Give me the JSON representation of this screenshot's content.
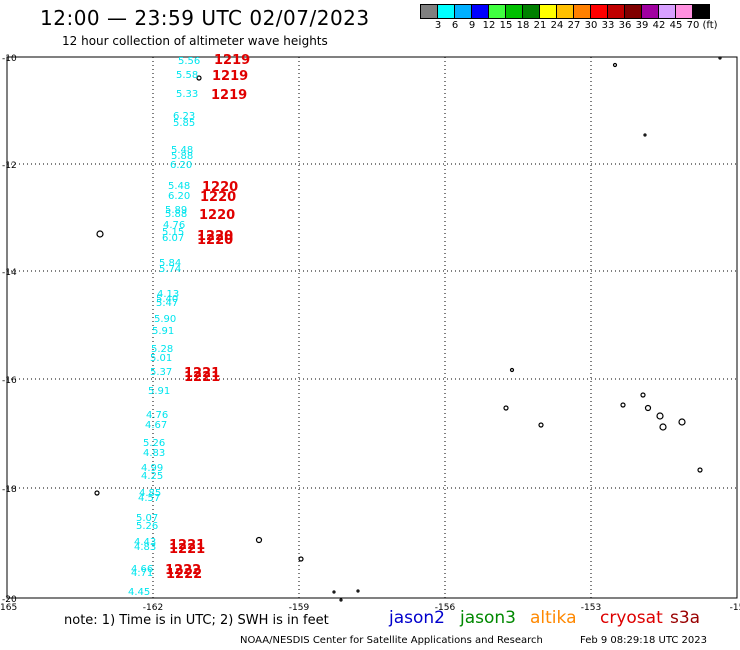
{
  "title": "12:00 — 23:59 UTC 02/07/2023",
  "subtitle": "12 hour collection of altimeter wave heights",
  "colorbar": {
    "colors": [
      "#808080",
      "#00ffff",
      "#00b0ff",
      "#0000ff",
      "#40ff40",
      "#00c000",
      "#008000",
      "#ffff00",
      "#ffc000",
      "#ff8000",
      "#ff0000",
      "#c00000",
      "#800000",
      "#a000a0",
      "#d8a0ff",
      "#ff90e0",
      "#000000"
    ],
    "ticks": [
      "3",
      "6",
      "9",
      "12",
      "15",
      "18",
      "21",
      "24",
      "27",
      "30",
      "33",
      "36",
      "39",
      "42",
      "45",
      "70",
      "(ft)"
    ]
  },
  "axes": {
    "lat_labels": [
      "-10",
      "-12",
      "-14",
      "-16",
      "-18",
      "-20"
    ],
    "lon_labels": [
      "-165",
      "-162",
      "-159",
      "-156",
      "-153",
      "-15"
    ]
  },
  "observations": [
    {
      "v": "5.56",
      "c": "#00e5ee"
    },
    {
      "v": "5.58",
      "c": "#00e5ee"
    },
    {
      "v": "5.33",
      "c": "#00e5ee"
    },
    {
      "v": "6.23",
      "c": "#00e5ee"
    },
    {
      "v": "5.85",
      "c": "#00e5ee"
    },
    {
      "v": "5.48",
      "c": "#00e5ee"
    },
    {
      "v": "5.88",
      "c": "#00e5ee"
    },
    {
      "v": "6.20",
      "c": "#00e5ee"
    },
    {
      "v": "5.48",
      "c": "#00e5ee"
    },
    {
      "v": "6.20",
      "c": "#00e5ee"
    },
    {
      "v": "5.89",
      "c": "#00e5ee"
    },
    {
      "v": "5.88",
      "c": "#00e5ee"
    },
    {
      "v": "4.76",
      "c": "#00e5ee"
    },
    {
      "v": "5.15",
      "c": "#00e5ee"
    },
    {
      "v": "6.07",
      "c": "#00e5ee"
    },
    {
      "v": "5.84",
      "c": "#00e5ee"
    },
    {
      "v": "5.74",
      "c": "#00e5ee"
    },
    {
      "v": "4.13",
      "c": "#00e5ee"
    },
    {
      "v": "5.40",
      "c": "#00e5ee"
    },
    {
      "v": "5.47",
      "c": "#00e5ee"
    },
    {
      "v": "5.90",
      "c": "#00e5ee"
    },
    {
      "v": "5.91",
      "c": "#00e5ee"
    },
    {
      "v": "5.28",
      "c": "#00e5ee"
    },
    {
      "v": "5.01",
      "c": "#00e5ee"
    },
    {
      "v": "5.37",
      "c": "#00e5ee"
    },
    {
      "v": "5.91",
      "c": "#00e5ee"
    },
    {
      "v": "4.76",
      "c": "#00e5ee"
    },
    {
      "v": "4.67",
      "c": "#00e5ee"
    },
    {
      "v": "5.26",
      "c": "#00e5ee"
    },
    {
      "v": "4.83",
      "c": "#00e5ee"
    },
    {
      "v": "4.99",
      "c": "#00e5ee"
    },
    {
      "v": "4.25",
      "c": "#00e5ee"
    },
    {
      "v": "4.85",
      "c": "#00e5ee"
    },
    {
      "v": "4.57",
      "c": "#00e5ee"
    },
    {
      "v": "5.07",
      "c": "#00e5ee"
    },
    {
      "v": "5.26",
      "c": "#00e5ee"
    },
    {
      "v": "4.43",
      "c": "#00e5ee"
    },
    {
      "v": "4.83",
      "c": "#00e5ee"
    },
    {
      "v": "4.66",
      "c": "#00e5ee"
    },
    {
      "v": "4.71",
      "c": "#00e5ee"
    },
    {
      "v": "4.45",
      "c": "#00e5ee"
    }
  ],
  "times": [
    {
      "v": "1219"
    },
    {
      "v": "1219"
    },
    {
      "v": "1219"
    },
    {
      "v": "1220"
    },
    {
      "v": "1220"
    },
    {
      "v": "1220"
    },
    {
      "v": "1220"
    },
    {
      "v": "1220"
    },
    {
      "v": "1221"
    },
    {
      "v": "1221"
    },
    {
      "v": "1221"
    },
    {
      "v": "1221"
    },
    {
      "v": "1222"
    },
    {
      "v": "1222"
    }
  ],
  "time_color": "#e00000",
  "note": "note:  1) Time is in UTC;  2) SWH is in feet",
  "satellites": [
    {
      "name": "jason2",
      "color": "#0000cc"
    },
    {
      "name": "jason3",
      "color": "#008800"
    },
    {
      "name": "altika",
      "color": "#ff8800"
    },
    {
      "name": "cryosat",
      "color": "#dd0000"
    },
    {
      "name": "s3a",
      "color": "#990000"
    }
  ],
  "credit": "NOAA/NESDIS Center for Satellite Applications and Research",
  "credit_time": "Feb  9 08:29:18 UTC 2023"
}
